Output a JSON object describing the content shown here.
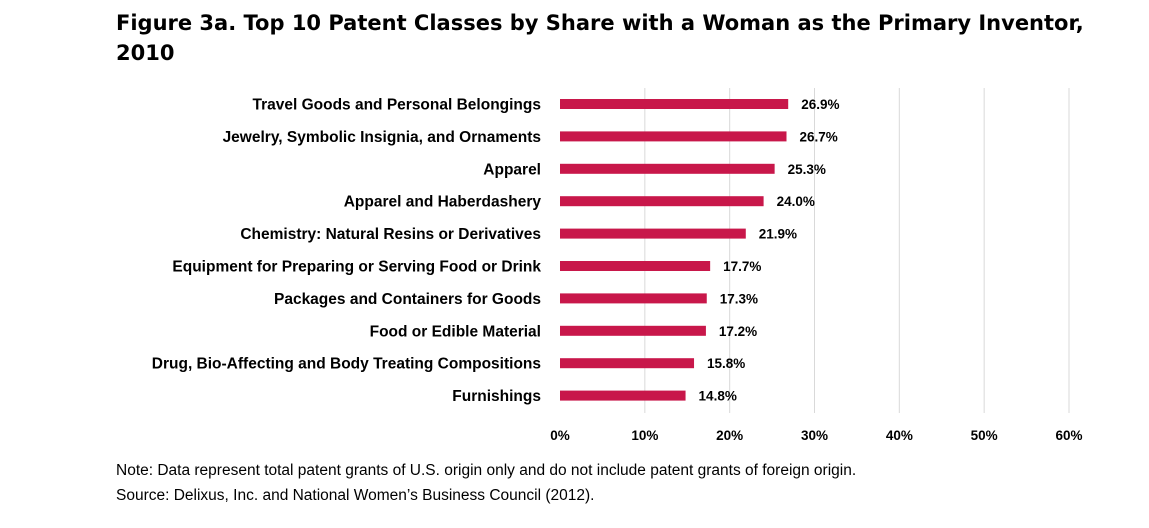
{
  "chart_data": {
    "type": "bar",
    "orientation": "horizontal",
    "title": "Figure 3a. Top 10 Patent Classes by Share with a Woman as the Primary Inventor, 2010",
    "categories": [
      "Travel Goods and Personal Belongings",
      "Jewelry, Symbolic Insignia, and Ornaments",
      "Apparel",
      "Apparel and Haberdashery",
      "Chemistry: Natural Resins or Derivatives",
      "Equipment for Preparing or Serving Food or Drink",
      "Packages and Containers for Goods",
      "Food or Edible Material",
      "Drug, Bio-Affecting and Body Treating Compositions",
      "Furnishings"
    ],
    "values": [
      26.9,
      26.7,
      25.3,
      24.0,
      21.9,
      17.7,
      17.3,
      17.2,
      15.8,
      14.8
    ],
    "value_labels": [
      "26.9%",
      "26.7%",
      "25.3%",
      "24.0%",
      "21.9%",
      "17.7%",
      "17.3%",
      "17.2%",
      "15.8%",
      "14.8%"
    ],
    "xlim": [
      0,
      60
    ],
    "xticks": [
      0,
      10,
      20,
      30,
      40,
      50,
      60
    ],
    "xtick_labels": [
      "0%",
      "10%",
      "20%",
      "30%",
      "40%",
      "50%",
      "60%"
    ],
    "xlabel": "",
    "ylabel": "",
    "grid": "vertical",
    "legend": "none",
    "bar_color": "#C8174A",
    "grid_color": "#D9D9D9"
  },
  "notes": {
    "note": "Note: Data represent total patent grants of U.S. origin only and do not include patent grants of foreign origin.",
    "source": "Source: Delixus, Inc. and National Women’s Business Council (2012)."
  }
}
